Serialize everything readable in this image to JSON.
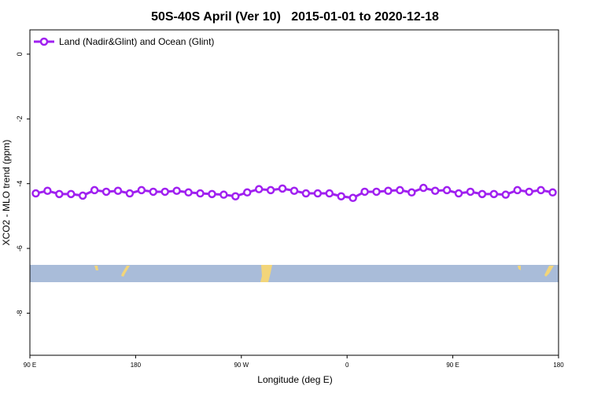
{
  "chart_data": {
    "type": "line",
    "title": "50S-40S April (Ver 10)   2015-01-01 to 2020-12-18",
    "x_label": "Longitude (deg E)",
    "y_label": "XCO2 - MLO trend (ppm)",
    "x": [
      95,
      105,
      115,
      125,
      135,
      145,
      155,
      165,
      175,
      185,
      195,
      205,
      215,
      225,
      235,
      245,
      255,
      265,
      275,
      285,
      295,
      305,
      315,
      325,
      335,
      345,
      355,
      365,
      375,
      385,
      395,
      405,
      415,
      425,
      435,
      445,
      455,
      465,
      475,
      485,
      495,
      505,
      515,
      525,
      535
    ],
    "series": [
      {
        "name": "Land (Nadir&Glint) and Ocean (Glint)",
        "color": "#a020f0",
        "values": [
          -4.3,
          -4.22,
          -4.32,
          -4.32,
          -4.37,
          -4.2,
          -4.25,
          -4.22,
          -4.3,
          -4.2,
          -4.25,
          -4.25,
          -4.22,
          -4.27,
          -4.3,
          -4.32,
          -4.34,
          -4.39,
          -4.27,
          -4.17,
          -4.2,
          -4.15,
          -4.22,
          -4.3,
          -4.3,
          -4.3,
          -4.39,
          -4.44,
          -4.25,
          -4.25,
          -4.22,
          -4.2,
          -4.27,
          -4.13,
          -4.22,
          -4.2,
          -4.3,
          -4.25,
          -4.32,
          -4.32,
          -4.34,
          -4.2,
          -4.25,
          -4.2,
          -4.27
        ]
      }
    ],
    "xlim": [
      90,
      540
    ],
    "xticks": [
      {
        "value": 90,
        "label": "90 E"
      },
      {
        "value": 180,
        "label": "180"
      },
      {
        "value": 270,
        "label": "90 W"
      },
      {
        "value": 360,
        "label": "0"
      },
      {
        "value": 450,
        "label": "90 E"
      },
      {
        "value": 540,
        "label": "180"
      }
    ],
    "ylim": [
      -9.3,
      0.75
    ],
    "yticks": [
      0,
      -2,
      -4,
      -6,
      -8
    ],
    "legend": "top-left"
  }
}
